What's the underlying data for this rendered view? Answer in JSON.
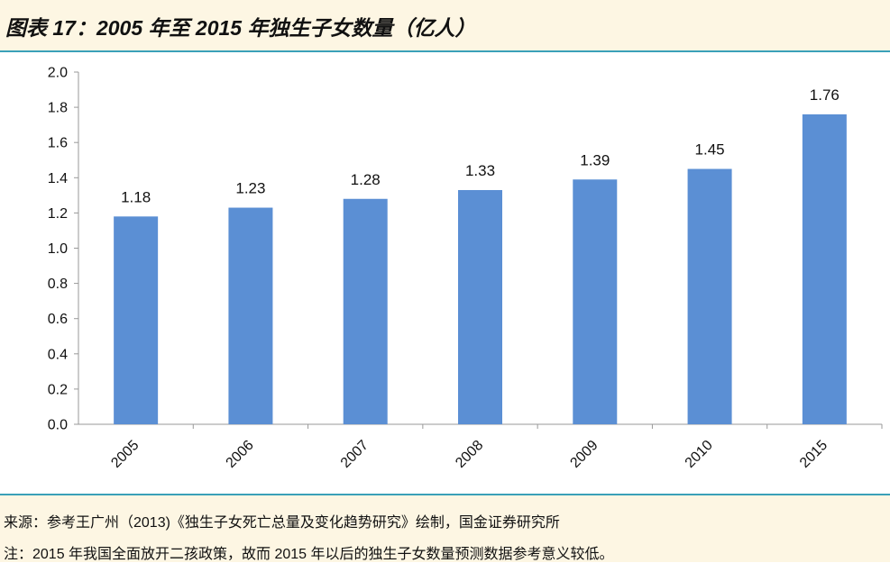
{
  "title": "图表 17：2005 年至 2015 年独生子女数量（亿人）",
  "source": "来源：参考王广州（2013)《独生子女死亡总量及变化趋势研究》绘制，国金证券研究所",
  "remark": "注：2015 年我国全面放开二孩政策，故而 2015 年以后的独生子女数量预测数据参考意义较低。",
  "colors": {
    "bar": "#5b8fd4",
    "rule": "#3aa0b8",
    "panel": "#fdf6e3"
  },
  "chart_data": {
    "type": "bar",
    "title": "2005 年至 2015 年独生子女数量（亿人）",
    "xlabel": "",
    "ylabel": "",
    "categories": [
      "2005",
      "2006",
      "2007",
      "2008",
      "2009",
      "2010",
      "2015"
    ],
    "values": [
      1.18,
      1.23,
      1.28,
      1.33,
      1.39,
      1.45,
      1.76
    ],
    "value_labels": [
      "1.18",
      "1.23",
      "1.28",
      "1.33",
      "1.39",
      "1.45",
      "1.76"
    ],
    "yticks": [
      "0.0",
      "0.2",
      "0.4",
      "0.6",
      "0.8",
      "1.0",
      "1.2",
      "1.4",
      "1.6",
      "1.8",
      "2.0"
    ],
    "ylim": [
      0,
      2.0
    ],
    "grid": false,
    "legend": "none"
  }
}
